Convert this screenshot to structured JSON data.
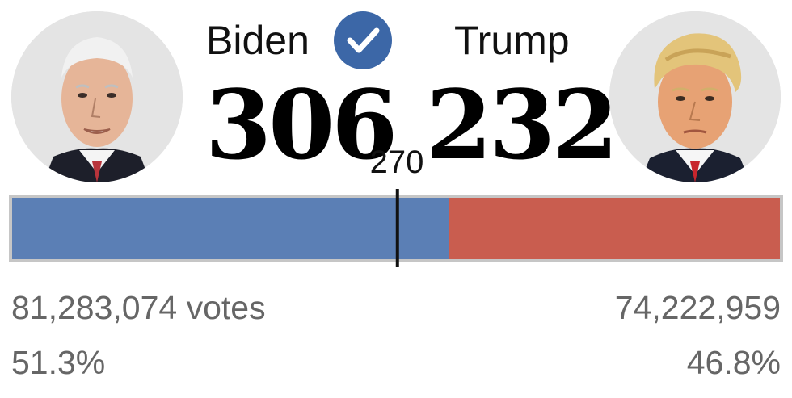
{
  "chart_data": {
    "type": "bar",
    "orientation": "horizontal-stacked",
    "total_electoral_votes": 538,
    "threshold": 270,
    "threshold_label": "270",
    "series": [
      {
        "name": "Biden",
        "electoral_votes": 306,
        "electoral_votes_label": "306",
        "popular_votes": "81,283,074 votes",
        "popular_pct": "51.3%",
        "color": "#5b7fb5",
        "winner": true
      },
      {
        "name": "Trump",
        "electoral_votes": 232,
        "electoral_votes_label": "232",
        "popular_votes": "74,222,959",
        "popular_pct": "46.8%",
        "color": "#c95d4f",
        "winner": false
      }
    ]
  },
  "icons": {
    "winner_check": "check-circle-icon",
    "check_color": "#3c67a7"
  },
  "colors": {
    "bar_border": "#c6c6c6",
    "threshold_line": "#111111",
    "stat_text": "#666666"
  }
}
